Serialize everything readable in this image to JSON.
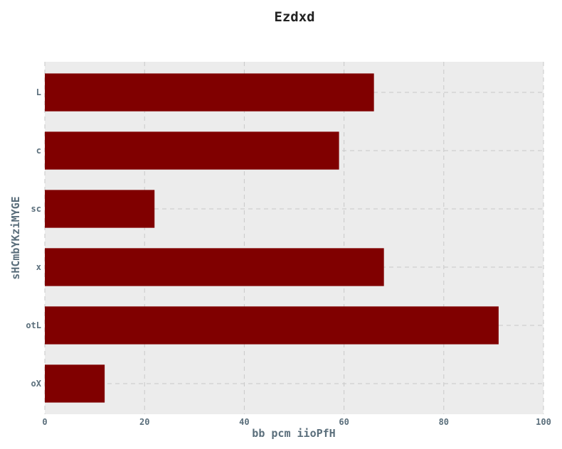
{
  "chart_data": {
    "type": "bar",
    "orientation": "horizontal",
    "title": "Ezdxd",
    "xlabel": "bb pcm iioPfH",
    "ylabel": "sHCmbYKziMYGE",
    "categories": [
      "L",
      "c",
      "sc",
      "x",
      "otL",
      "oX"
    ],
    "values": [
      66,
      59,
      22,
      68,
      91,
      12
    ],
    "xlim": [
      0,
      100
    ],
    "xticks": [
      "0",
      "20",
      "40",
      "60",
      "80",
      "100"
    ],
    "grid": true,
    "bar_color": "#800000",
    "background_color": "#ececec"
  }
}
